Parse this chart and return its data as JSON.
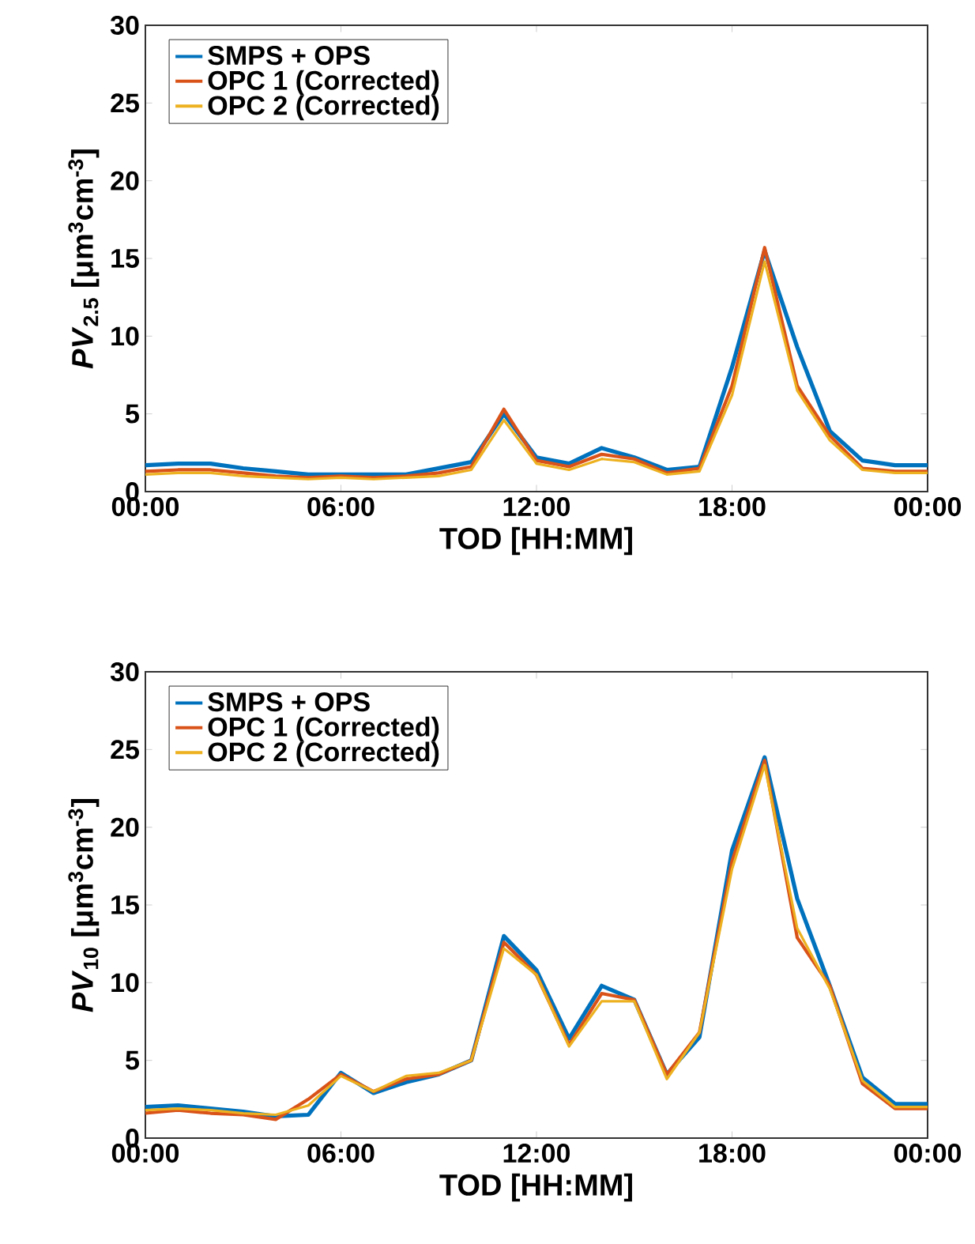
{
  "chart_data": [
    {
      "type": "line",
      "xlabel": "TOD [HH:MM]",
      "ylabel": "*PV*$_{2.5}$ [μm$^{3}$cm$^{-3}$]",
      "x": [
        0,
        1,
        2,
        3,
        4,
        5,
        6,
        7,
        8,
        9,
        10,
        11,
        12,
        13,
        14,
        15,
        16,
        17,
        18,
        19,
        20,
        21,
        22,
        23,
        24
      ],
      "xlim": [
        0,
        24
      ],
      "xticks": [
        {
          "value": 0,
          "label": "00:00"
        },
        {
          "value": 6,
          "label": "06:00"
        },
        {
          "value": 12,
          "label": "12:00"
        },
        {
          "value": 18,
          "label": "18:00"
        },
        {
          "value": 24,
          "label": "00:00"
        }
      ],
      "ylim": [
        0,
        30
      ],
      "yticks": [
        0,
        5,
        10,
        15,
        20,
        25,
        30
      ],
      "legend": "top left",
      "series": [
        {
          "name": "SMPS + OPS",
          "color": "#0072bd",
          "values": [
            1.7,
            1.8,
            1.8,
            1.5,
            1.3,
            1.1,
            1.1,
            1.1,
            1.1,
            1.5,
            1.9,
            5.0,
            2.2,
            1.8,
            2.8,
            2.2,
            1.4,
            1.6,
            8.0,
            15.5,
            9.3,
            3.9,
            2.0,
            1.7,
            1.7
          ]
        },
        {
          "name": "OPC 1 (Corrected)",
          "color": "#d95319",
          "values": [
            1.3,
            1.4,
            1.4,
            1.2,
            1.0,
            0.9,
            1.0,
            0.9,
            1.0,
            1.2,
            1.6,
            5.3,
            2.0,
            1.6,
            2.4,
            2.1,
            1.2,
            1.5,
            6.8,
            15.7,
            6.8,
            3.6,
            1.5,
            1.3,
            1.3
          ]
        },
        {
          "name": "OPC 2 (Corrected)",
          "color": "#edb120",
          "values": [
            1.1,
            1.2,
            1.2,
            1.0,
            0.9,
            0.8,
            0.9,
            0.8,
            0.9,
            1.0,
            1.4,
            4.6,
            1.8,
            1.4,
            2.1,
            1.9,
            1.1,
            1.3,
            6.2,
            14.8,
            6.5,
            3.3,
            1.4,
            1.2,
            1.2
          ]
        }
      ]
    },
    {
      "type": "line",
      "xlabel": "TOD [HH:MM]",
      "ylabel": "*PV*$_{10}$ [μm$^{3}$cm$^{-3}$]",
      "x": [
        0,
        1,
        2,
        3,
        4,
        5,
        6,
        7,
        8,
        9,
        10,
        11,
        12,
        13,
        14,
        15,
        16,
        17,
        18,
        19,
        20,
        21,
        22,
        23,
        24
      ],
      "xlim": [
        0,
        24
      ],
      "xticks": [
        {
          "value": 0,
          "label": "00:00"
        },
        {
          "value": 6,
          "label": "06:00"
        },
        {
          "value": 12,
          "label": "12:00"
        },
        {
          "value": 18,
          "label": "18:00"
        },
        {
          "value": 24,
          "label": "00:00"
        }
      ],
      "ylim": [
        0,
        30
      ],
      "yticks": [
        0,
        5,
        10,
        15,
        20,
        25,
        30
      ],
      "legend": "top left",
      "series": [
        {
          "name": "SMPS + OPS",
          "color": "#0072bd",
          "values": [
            2.0,
            2.1,
            1.9,
            1.7,
            1.4,
            1.5,
            4.2,
            2.9,
            3.6,
            4.1,
            5.0,
            13.0,
            10.8,
            6.4,
            9.8,
            8.9,
            4.1,
            6.5,
            18.5,
            24.5,
            15.4,
            9.8,
            3.9,
            2.2,
            2.2
          ]
        },
        {
          "name": "OPC 1 (Corrected)",
          "color": "#d95319",
          "values": [
            1.6,
            1.8,
            1.6,
            1.5,
            1.2,
            2.5,
            4.1,
            3.0,
            3.8,
            4.1,
            5.0,
            12.6,
            10.5,
            6.0,
            9.3,
            8.9,
            4.1,
            6.8,
            17.8,
            24.3,
            12.9,
            9.8,
            3.5,
            1.9,
            1.9
          ]
        },
        {
          "name": "OPC 2 (Corrected)",
          "color": "#edb120",
          "values": [
            1.8,
            1.9,
            1.8,
            1.6,
            1.5,
            2.1,
            4.0,
            3.0,
            4.0,
            4.2,
            5.0,
            12.2,
            10.5,
            5.9,
            8.8,
            8.8,
            3.8,
            6.8,
            17.3,
            24.0,
            13.5,
            9.6,
            3.7,
            2.0,
            2.0
          ]
        }
      ]
    }
  ]
}
